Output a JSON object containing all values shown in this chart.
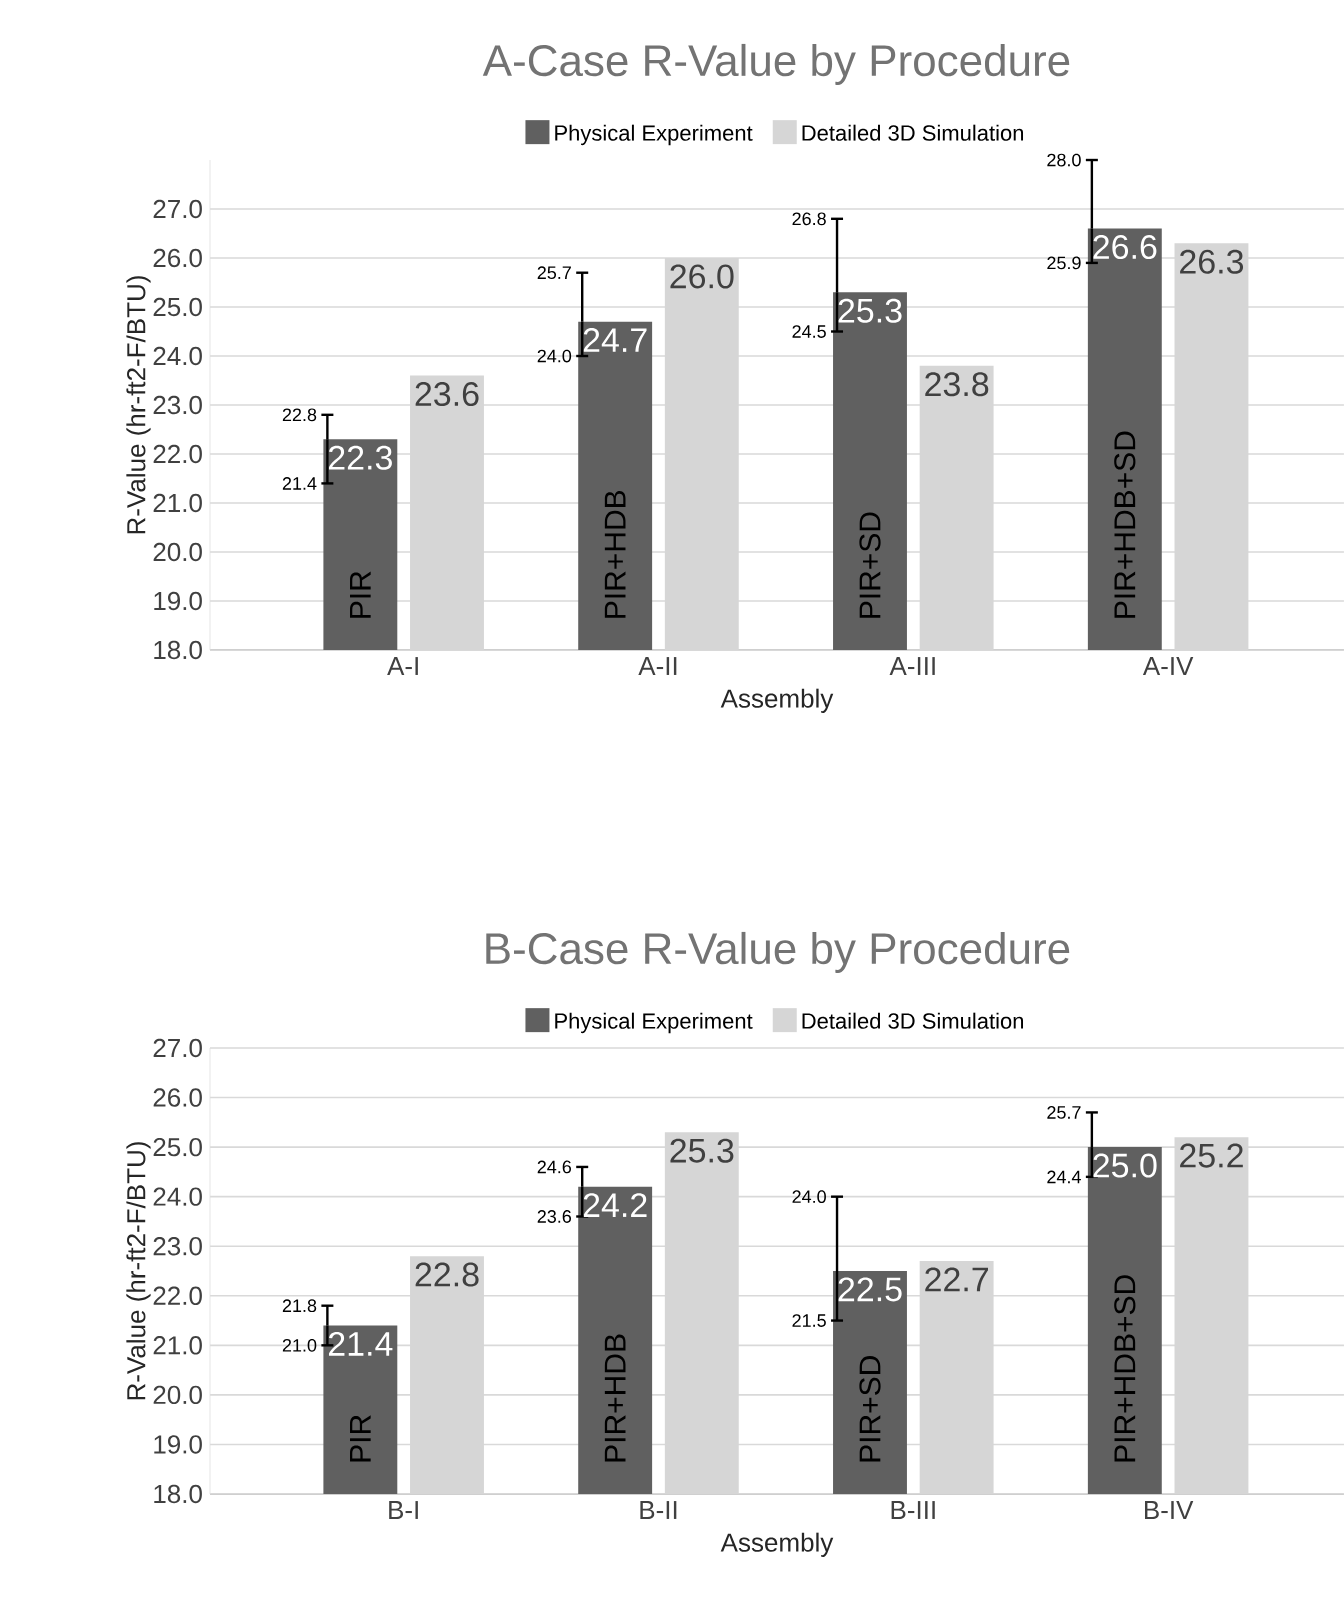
{
  "chart_data": [
    {
      "type": "bar",
      "title": "A-Case R-Value by Procedure",
      "xlabel": "Assembly",
      "ylabel": "R-Value (hr-ft2-F/BTU)",
      "categories": [
        "A-I",
        "A-II",
        "A-III",
        "A-IV"
      ],
      "series": [
        {
          "name": "Physical Experiment",
          "color": "#606060",
          "values": [
            22.3,
            24.7,
            25.3,
            26.6
          ],
          "value_labels": [
            "22.3",
            "24.7",
            "25.3",
            "26.6"
          ],
          "errors": [
            [
              21.4,
              22.8
            ],
            [
              24.0,
              25.7
            ],
            [
              24.5,
              26.8
            ],
            [
              25.9,
              28.0
            ]
          ]
        },
        {
          "name": "Detailed 3D Simulation",
          "color": "#d6d6d6",
          "values": [
            23.6,
            26.0,
            23.8,
            26.3
          ],
          "value_labels": [
            "23.6",
            "26.0",
            "23.8",
            "26.3"
          ]
        }
      ],
      "ylim": [
        18,
        28
      ],
      "yticks": [
        {
          "value": 18,
          "label": "18.0"
        },
        {
          "value": 19,
          "label": "19.0"
        },
        {
          "value": 20,
          "label": "20.0"
        },
        {
          "value": 21,
          "label": "21.0"
        },
        {
          "value": 22,
          "label": "22.0"
        },
        {
          "value": 23,
          "label": "23.0"
        },
        {
          "value": 24,
          "label": "24.0"
        },
        {
          "value": 25,
          "label": "25.0"
        },
        {
          "value": 26,
          "label": "26.0"
        },
        {
          "value": 27,
          "label": "27.0"
        }
      ],
      "grid": "y",
      "legend": "top",
      "annotations": [
        {
          "text": "PIR",
          "x": "A-I",
          "y": 18.6
        },
        {
          "text": "PIR+HDB",
          "x": "A-II",
          "y": 18.6
        },
        {
          "text": "PIR+SD",
          "x": "A-III",
          "y": 18.6
        },
        {
          "text": "PIR+HDB+SD",
          "x": "A-IV",
          "y": 18.6
        },
        "21.4",
        "22.8",
        "24.0",
        "25.7",
        "24.5",
        "26.8",
        "25.9",
        "28.0"
      ]
    },
    {
      "type": "bar",
      "title": "B-Case R-Value by Procedure",
      "xlabel": "Assembly",
      "ylabel": "R-Value (hr-ft2-F/BTU)",
      "categories": [
        "B-I",
        "B-II",
        "B-III",
        "B-IV"
      ],
      "series": [
        {
          "name": "Physical Experiment",
          "color": "#606060",
          "values": [
            21.4,
            24.2,
            22.5,
            25.0
          ],
          "value_labels": [
            "21.4",
            "24.2",
            "22.5",
            "25.0"
          ],
          "errors": [
            [
              21.0,
              21.8
            ],
            [
              23.6,
              24.6
            ],
            [
              21.5,
              24.0
            ],
            [
              24.4,
              25.7
            ]
          ]
        },
        {
          "name": "Detailed 3D Simulation",
          "color": "#d6d6d6",
          "values": [
            22.8,
            25.3,
            22.7,
            25.2
          ],
          "value_labels": [
            "22.8",
            "25.3",
            "22.7",
            "25.2"
          ]
        }
      ],
      "ylim": [
        18,
        27
      ],
      "yticks": [
        {
          "value": 18,
          "label": "18.0"
        },
        {
          "value": 19,
          "label": "19.0"
        },
        {
          "value": 20,
          "label": "20.0"
        },
        {
          "value": 21,
          "label": "21.0"
        },
        {
          "value": 22,
          "label": "22.0"
        },
        {
          "value": 23,
          "label": "23.0"
        },
        {
          "value": 24,
          "label": "24.0"
        },
        {
          "value": 25,
          "label": "25.0"
        },
        {
          "value": 26,
          "label": "26.0"
        },
        {
          "value": 27,
          "label": "27.0"
        }
      ],
      "grid": "y",
      "legend": "top",
      "annotations": [
        {
          "text": "PIR",
          "x": "B-I",
          "y": 18.6
        },
        {
          "text": "PIR+HDB",
          "x": "B-II",
          "y": 18.6
        },
        {
          "text": "PIR+SD",
          "x": "B-III",
          "y": 18.6
        },
        {
          "text": "PIR+HDB+SD",
          "x": "B-IV",
          "y": 18.6
        },
        "21.0",
        "21.8",
        "23.6",
        "24.6",
        "21.5",
        "24.0",
        "24.4",
        "25.7"
      ]
    }
  ]
}
